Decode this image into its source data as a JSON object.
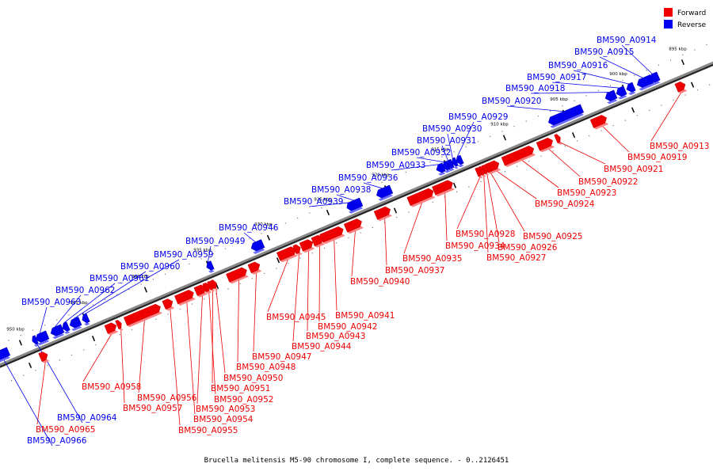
{
  "caption": "Brucella melitensis M5-90 chromosome I, complete sequence. - 0..2126451",
  "legend": [
    {
      "label": "Forward",
      "color": "#ee0000"
    },
    {
      "label": "Reverse",
      "color": "#0000ee"
    }
  ],
  "colors": {
    "forward": "#ee0000",
    "reverse": "#0000ee",
    "backbone": "#888888"
  },
  "ticks": [
    "895 kbp",
    "900 kbp",
    "905 kbp",
    "910 kbp",
    "915 kbp",
    "920 kbp",
    "925 kbp",
    "930 kbp",
    "935 kbp",
    "940 kbp",
    "945 kbp",
    "950 kbp"
  ],
  "genes": [
    {
      "name": "BM590_A0913",
      "strand": "forward"
    },
    {
      "name": "BM590_A0914",
      "strand": "reverse"
    },
    {
      "name": "BM590_A0915",
      "strand": "reverse"
    },
    {
      "name": "BM590_A0916",
      "strand": "reverse"
    },
    {
      "name": "BM590_A0917",
      "strand": "reverse"
    },
    {
      "name": "BM590_A0918",
      "strand": "reverse"
    },
    {
      "name": "BM590_A0919",
      "strand": "forward"
    },
    {
      "name": "BM590_A0920",
      "strand": "reverse"
    },
    {
      "name": "BM590_A0921",
      "strand": "forward"
    },
    {
      "name": "BM590_A0922",
      "strand": "forward"
    },
    {
      "name": "BM590_A0923",
      "strand": "forward"
    },
    {
      "name": "BM590_A0924",
      "strand": "forward"
    },
    {
      "name": "BM590_A0925",
      "strand": "forward"
    },
    {
      "name": "BM590_A0926",
      "strand": "forward"
    },
    {
      "name": "BM590_A0927",
      "strand": "forward"
    },
    {
      "name": "BM590_A0928",
      "strand": "forward"
    },
    {
      "name": "BM590_A0929",
      "strand": "reverse"
    },
    {
      "name": "BM590_A0930",
      "strand": "reverse"
    },
    {
      "name": "BM590_A0931",
      "strand": "reverse"
    },
    {
      "name": "BM590_A0932",
      "strand": "reverse"
    },
    {
      "name": "BM590_A0933",
      "strand": "reverse"
    },
    {
      "name": "BM590_A0934",
      "strand": "forward"
    },
    {
      "name": "BM590_A0935",
      "strand": "forward"
    },
    {
      "name": "BM590_A0936",
      "strand": "reverse"
    },
    {
      "name": "BM590_A0937",
      "strand": "forward"
    },
    {
      "name": "BM590_A0938",
      "strand": "reverse"
    },
    {
      "name": "BM590_A0939",
      "strand": "reverse"
    },
    {
      "name": "BM590_A0940",
      "strand": "forward"
    },
    {
      "name": "BM590_A0941",
      "strand": "forward"
    },
    {
      "name": "BM590_A0942",
      "strand": "forward"
    },
    {
      "name": "BM590_A0943",
      "strand": "forward"
    },
    {
      "name": "BM590_A0944",
      "strand": "forward"
    },
    {
      "name": "BM590_A0945",
      "strand": "forward"
    },
    {
      "name": "BM590_A0946",
      "strand": "reverse"
    },
    {
      "name": "BM590_A0947",
      "strand": "forward"
    },
    {
      "name": "BM590_A0948",
      "strand": "forward"
    },
    {
      "name": "BM590_A0949",
      "strand": "reverse"
    },
    {
      "name": "BM590_A0950",
      "strand": "forward"
    },
    {
      "name": "BM590_A0951",
      "strand": "forward"
    },
    {
      "name": "BM590_A0952",
      "strand": "forward"
    },
    {
      "name": "BM590_A0953",
      "strand": "forward"
    },
    {
      "name": "BM590_A0954",
      "strand": "forward"
    },
    {
      "name": "BM590_A0955",
      "strand": "forward"
    },
    {
      "name": "BM590_A0956",
      "strand": "forward"
    },
    {
      "name": "BM590_A0957",
      "strand": "forward"
    },
    {
      "name": "BM590_A0958",
      "strand": "forward"
    },
    {
      "name": "BM590_A0959",
      "strand": "reverse"
    },
    {
      "name": "BM590_A0960",
      "strand": "reverse"
    },
    {
      "name": "BM590_A0961",
      "strand": "reverse"
    },
    {
      "name": "BM590_A0962",
      "strand": "reverse"
    },
    {
      "name": "BM590_A0963",
      "strand": "reverse"
    },
    {
      "name": "BM590_A0964",
      "strand": "reverse"
    },
    {
      "name": "BM590_A0965",
      "strand": "forward"
    },
    {
      "name": "BM590_A0966",
      "strand": "reverse"
    }
  ]
}
